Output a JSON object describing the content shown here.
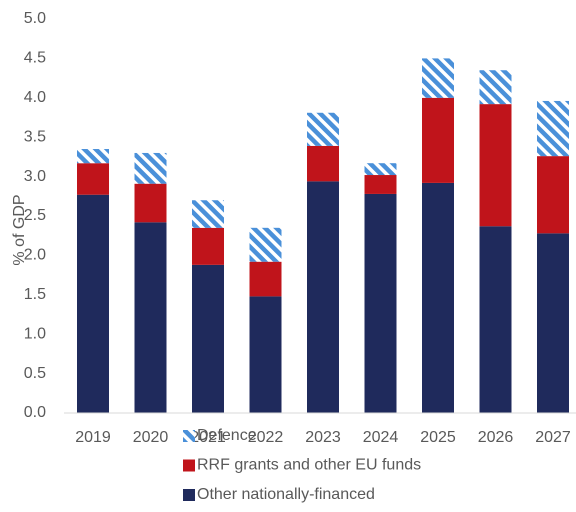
{
  "chart_data": {
    "type": "stacked_bar",
    "ylabel": "% of GDP",
    "categories": [
      "2019",
      "2020",
      "2021",
      "2022",
      "2023",
      "2024",
      "2025",
      "2026",
      "2027"
    ],
    "series": [
      {
        "name": "Other nationally-financed",
        "color": "#1f2a5c",
        "values": [
          2.77,
          2.42,
          1.88,
          1.48,
          2.94,
          2.78,
          2.92,
          2.37,
          2.28
        ]
      },
      {
        "name": "RRF grants and other EU funds",
        "color": "#c0141b",
        "values": [
          0.4,
          0.49,
          0.47,
          0.44,
          0.45,
          0.24,
          1.08,
          1.55,
          0.98
        ]
      },
      {
        "name": "Defence",
        "color": "#4a90d9",
        "hatch": true,
        "values": [
          0.18,
          0.39,
          0.35,
          0.43,
          0.42,
          0.15,
          0.5,
          0.43,
          0.7
        ]
      }
    ],
    "ylim": [
      0,
      5
    ],
    "yticks": [
      {
        "value": 0,
        "label": "0.0"
      },
      0.5,
      {
        "value": 1,
        "label": "1.0"
      },
      1.5,
      {
        "value": 2,
        "label": "2.0"
      },
      2.5,
      {
        "value": 3,
        "label": "3.0"
      },
      3.5,
      {
        "value": 4,
        "label": "4.0"
      },
      4.5,
      {
        "value": 5,
        "label": "5.0"
      }
    ],
    "legend": "bottom"
  }
}
